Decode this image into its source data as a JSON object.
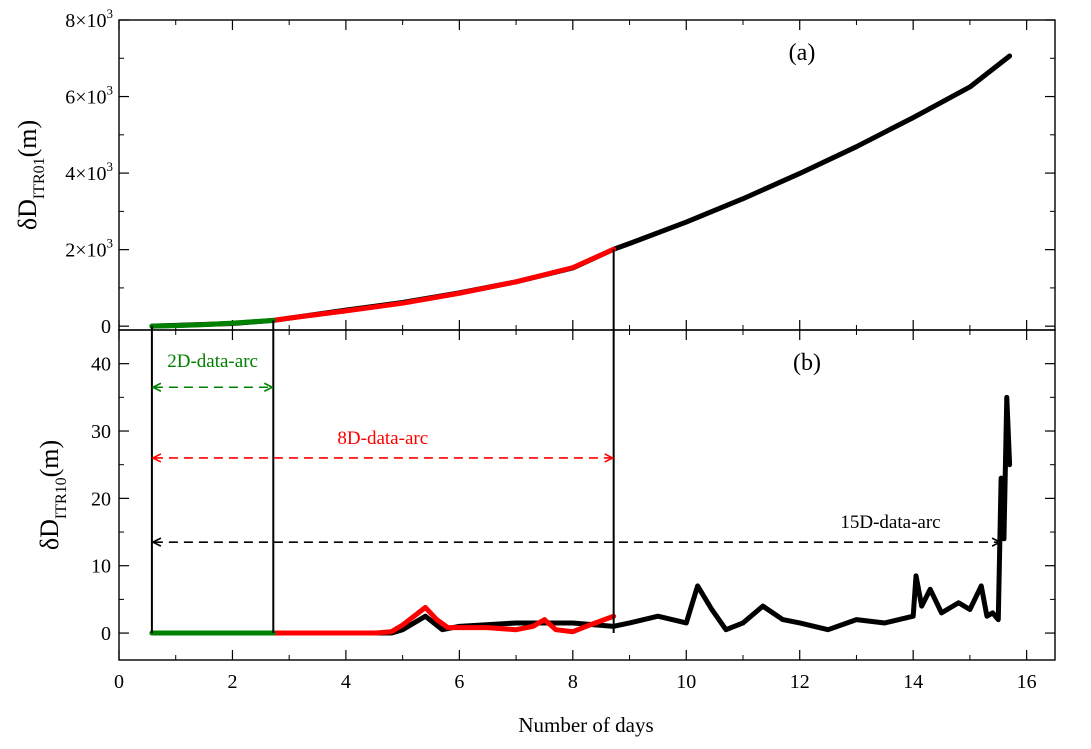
{
  "chart_data": {
    "type": "line",
    "x": {
      "label": "Number of days",
      "range": [
        0,
        16.5
      ],
      "ticks": [
        0,
        2,
        4,
        6,
        8,
        10,
        12,
        14,
        16
      ],
      "tick_labels": [
        "0",
        "2",
        "4",
        "6",
        "8",
        "10",
        "12",
        "14",
        "16"
      ]
    },
    "panels": [
      {
        "tag": "(a)",
        "ylabel_main": "δD",
        "ylabel_sub": "ITR01",
        "ylabel_unit": "(m)",
        "ylim": [
          -100,
          8000
        ],
        "yticks": [
          0,
          2000,
          4000,
          6000,
          8000
        ],
        "ytick_labels": [
          {
            "mantissa": "0",
            "exp": ""
          },
          {
            "mantissa": "2×10",
            "exp": "3"
          },
          {
            "mantissa": "4×10",
            "exp": "3"
          },
          {
            "mantissa": "6×10",
            "exp": "3"
          },
          {
            "mantissa": "8×10",
            "exp": "3"
          }
        ],
        "series": [
          {
            "name": "15D",
            "color": "#000000",
            "x": [
              0.58,
              1,
              2,
              2.72,
              4,
              5,
              6,
              7,
              8,
              8.72,
              9,
              10,
              11,
              12,
              13,
              14,
              15,
              15.7
            ],
            "y": [
              0,
              20,
              70,
              150,
              420,
              620,
              870,
              1160,
              1520,
              2010,
              2160,
              2720,
              3330,
              3990,
              4690,
              5450,
              6250,
              7060
            ]
          },
          {
            "name": "8D",
            "color": "#ff0000",
            "x": [
              2.72,
              3,
              4,
              5,
              6,
              7,
              8,
              8.72
            ],
            "y": [
              150,
              210,
              400,
              600,
              860,
              1160,
              1530,
              2010
            ]
          },
          {
            "name": "2D",
            "color": "#008000",
            "x": [
              0.58,
              1,
              1.5,
              2,
              2.5,
              2.72
            ],
            "y": [
              0,
              15,
              40,
              80,
              130,
              150
            ]
          }
        ]
      },
      {
        "tag": "(b)",
        "ylabel_main": "δD",
        "ylabel_sub": "ITR10",
        "ylabel_unit": "(m)",
        "ylim": [
          -4,
          45
        ],
        "yticks": [
          0,
          10,
          20,
          30,
          40
        ],
        "ytick_labels": [
          {
            "mantissa": "0",
            "exp": ""
          },
          {
            "mantissa": "10",
            "exp": ""
          },
          {
            "mantissa": "20",
            "exp": ""
          },
          {
            "mantissa": "30",
            "exp": ""
          },
          {
            "mantissa": "40",
            "exp": ""
          }
        ],
        "series": [
          {
            "name": "15D",
            "color": "#000000",
            "x": [
              2.72,
              4.8,
              5.0,
              5.4,
              5.7,
              6.0,
              7.0,
              8.0,
              8.72,
              9.0,
              9.5,
              10.0,
              10.2,
              10.45,
              10.7,
              11.0,
              11.35,
              11.7,
              12.0,
              12.5,
              13.0,
              13.5,
              14.0,
              14.05,
              14.15,
              14.3,
              14.5,
              14.8,
              15.0,
              15.2,
              15.3,
              15.4,
              15.5,
              15.55,
              15.6,
              15.65,
              15.7
            ],
            "y": [
              0,
              0,
              0.5,
              2.5,
              0.5,
              1.0,
              1.5,
              1.5,
              1.0,
              1.5,
              2.5,
              1.5,
              7.0,
              3.5,
              0.5,
              1.5,
              4.0,
              2.0,
              1.5,
              0.5,
              2.0,
              1.5,
              2.5,
              8.5,
              4.0,
              6.5,
              3.0,
              4.5,
              3.5,
              7.0,
              2.5,
              3.0,
              2.0,
              23.0,
              14.0,
              35.0,
              25.0
            ]
          },
          {
            "name": "8D",
            "color": "#ff0000",
            "x": [
              2.72,
              4.5,
              4.8,
              5.0,
              5.2,
              5.4,
              5.6,
              5.8,
              6.0,
              6.5,
              7.0,
              7.3,
              7.5,
              7.7,
              8.0,
              8.3,
              8.72
            ],
            "y": [
              0,
              0,
              0.2,
              1.2,
              2.5,
              3.8,
              2.0,
              0.8,
              0.8,
              0.8,
              0.5,
              1.0,
              2.0,
              0.5,
              0.2,
              1.2,
              2.5
            ]
          },
          {
            "name": "2D",
            "color": "#008000",
            "x": [
              0.58,
              1,
              1.5,
              2,
              2.5,
              2.72
            ],
            "y": [
              0,
              0,
              0,
              0,
              0,
              0
            ]
          }
        ],
        "arcs": [
          {
            "label": "2D-data-arc",
            "color": "#008000",
            "x_start": 0.58,
            "x_end": 2.72,
            "y": 36.5
          },
          {
            "label": "8D-data-arc",
            "color": "#ff0000",
            "x_start": 0.58,
            "x_end": 8.72,
            "y": 26
          },
          {
            "label": "15D-data-arc",
            "color": "#000000",
            "x_start": 0.58,
            "x_end": 15.55,
            "y": 13.5
          }
        ],
        "markers": [
          0.58,
          2.72,
          8.72
        ]
      }
    ]
  }
}
